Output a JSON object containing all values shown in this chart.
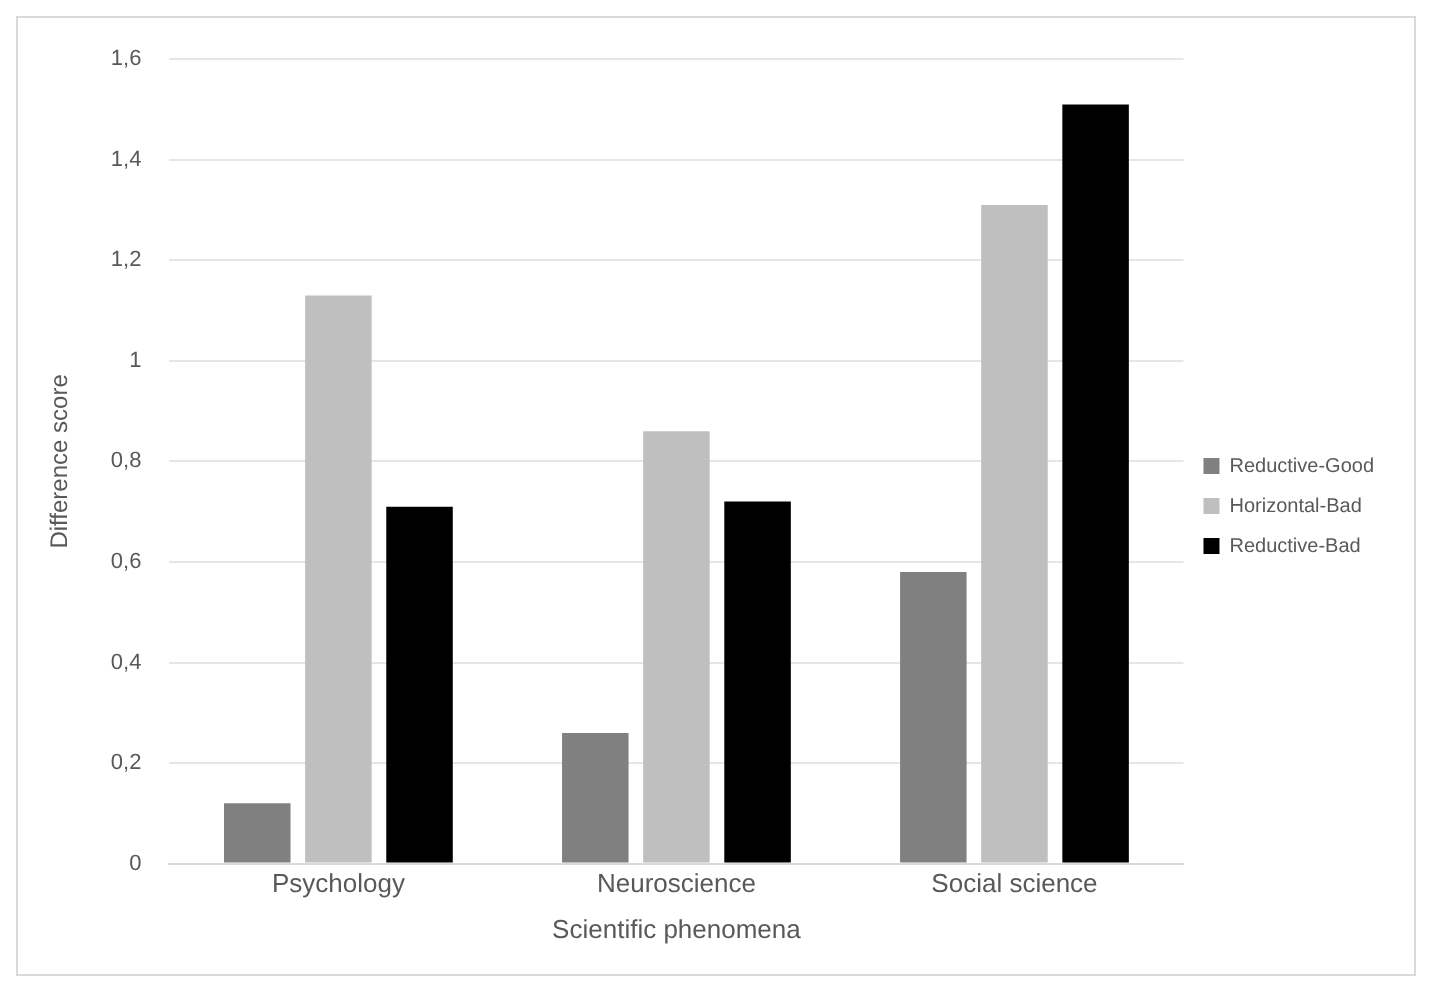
{
  "chart_data": {
    "type": "bar",
    "xlabel": "Scientific phenomena",
    "ylabel": "Difference score",
    "categories": [
      "Psychology",
      "Neuroscience",
      "Social science"
    ],
    "series": [
      {
        "name": "Reductive-Good",
        "color": "#808080",
        "values": [
          0.12,
          0.26,
          0.58
        ]
      },
      {
        "name": "Horizontal-Bad",
        "color": "#bfbfbf",
        "values": [
          1.13,
          0.86,
          1.31
        ]
      },
      {
        "name": "Reductive-Bad",
        "color": "#000000",
        "values": [
          0.71,
          0.72,
          1.51
        ]
      }
    ],
    "ylim": [
      0,
      1.6
    ],
    "yticks": [
      0,
      {
        "value": 0.2,
        "label": "0,2"
      },
      {
        "value": 0.4,
        "label": "0,4"
      },
      {
        "value": 0.6,
        "label": "0,6"
      },
      {
        "value": 0.8,
        "label": "0,8"
      },
      1,
      {
        "value": 1.2,
        "label": "1,2"
      },
      {
        "value": 1.4,
        "label": "1,4"
      },
      {
        "value": 1.6,
        "label": "1,6"
      }
    ],
    "grid": "y",
    "legend": "right"
  }
}
